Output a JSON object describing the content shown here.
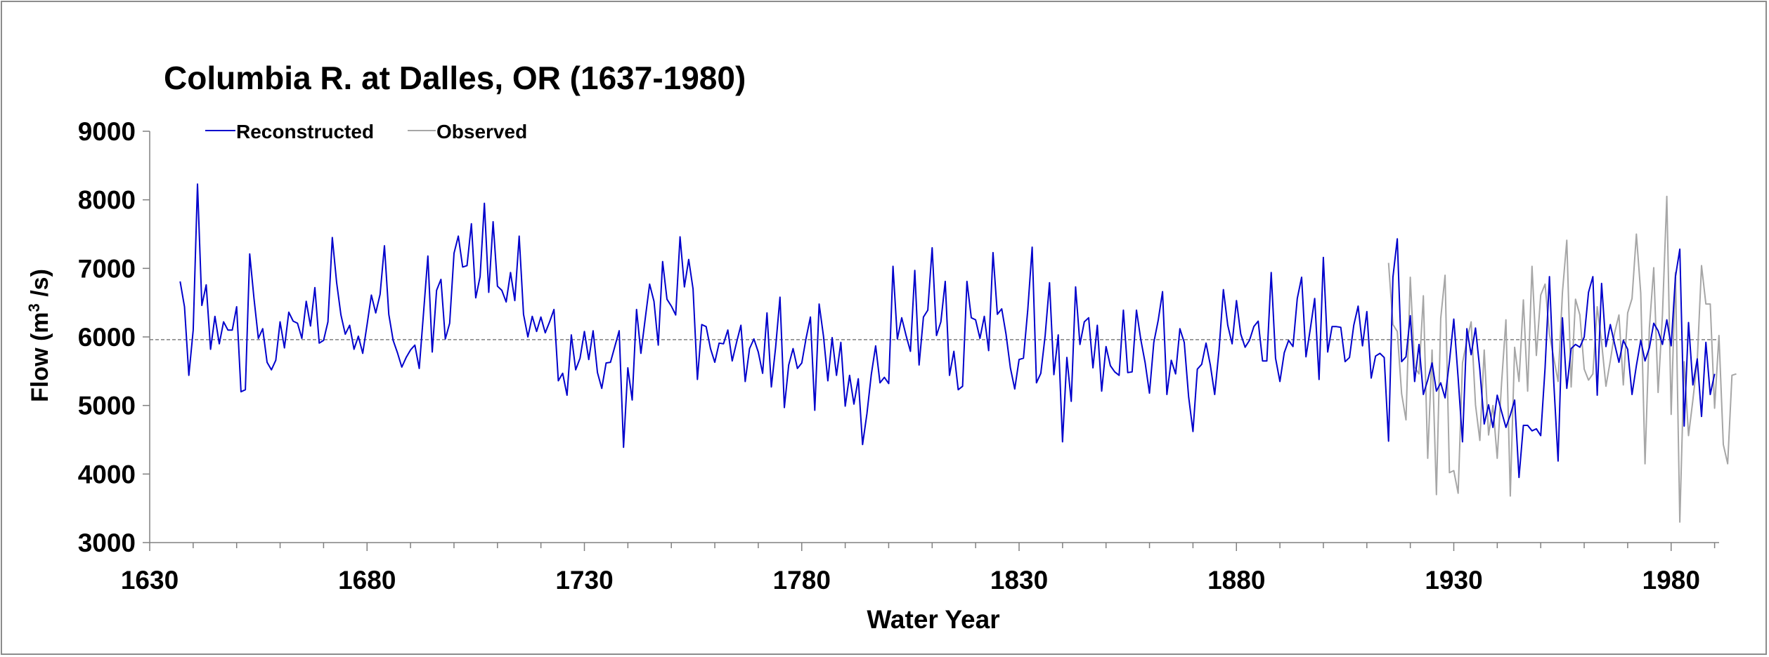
{
  "chart_data": {
    "type": "line",
    "title": "Columbia R. at Dalles, OR (1637-1980)",
    "xlabel": "Water Year",
    "ylabel_main": "Flow (m",
    "ylabel_sup": "3",
    "ylabel_tail": " /s)",
    "xlim": [
      1630,
      1990
    ],
    "ylim": [
      3000,
      9000
    ],
    "x_ticks": [
      1630,
      1680,
      1730,
      1780,
      1830,
      1880,
      1930,
      1980
    ],
    "y_ticks": [
      3000,
      4000,
      5000,
      6000,
      7000,
      8000,
      9000
    ],
    "mean_line": 5960,
    "legend_position": "top-left",
    "series": [
      {
        "name": "Reconstructed",
        "color": "#0000cc",
        "start_year": 1637,
        "values": [
          6810,
          6440,
          5440,
          6100,
          8230,
          6460,
          6760,
          5820,
          6300,
          5900,
          6220,
          6100,
          6100,
          6440,
          5200,
          5230,
          7210,
          6560,
          5980,
          6120,
          5630,
          5520,
          5660,
          6220,
          5840,
          6360,
          6230,
          6200,
          5980,
          6520,
          6160,
          6720,
          5910,
          5950,
          6220,
          7450,
          6790,
          6320,
          6040,
          6170,
          5820,
          6010,
          5760,
          6180,
          6610,
          6350,
          6620,
          7330,
          6330,
          5950,
          5770,
          5560,
          5700,
          5810,
          5880,
          5540,
          6360,
          7180,
          5780,
          6680,
          6840,
          5970,
          6200,
          7220,
          7470,
          7020,
          7040,
          7650,
          6570,
          6880,
          7950,
          6650,
          7680,
          6740,
          6680,
          6510,
          6940,
          6530,
          7470,
          6330,
          6000,
          6300,
          6080,
          6290,
          6060,
          6220,
          6400,
          5360,
          5470,
          5150,
          6030,
          5520,
          5690,
          6080,
          5670,
          6090,
          5480,
          5250,
          5620,
          5630,
          5860,
          6090,
          4390,
          5550,
          5080,
          6400,
          5760,
          6270,
          6770,
          6520,
          5880,
          7100,
          6550,
          6450,
          6320,
          7460,
          6730,
          7130,
          6700,
          5380,
          6180,
          6150,
          5830,
          5630,
          5910,
          5900,
          6100,
          5650,
          5920,
          6170,
          5350,
          5830,
          5970,
          5780,
          5470,
          6350,
          5270,
          5850,
          6580,
          4970,
          5590,
          5830,
          5540,
          5620,
          5980,
          6290,
          4930,
          6480,
          6010,
          5360,
          5990,
          5440,
          5920,
          4990,
          5440,
          5020,
          5390,
          4430,
          4880,
          5450,
          5870,
          5330,
          5410,
          5320,
          7030,
          5970,
          6280,
          6020,
          5790,
          6970,
          5590,
          6290,
          6390,
          7300,
          6020,
          6220,
          6810,
          5440,
          5790,
          5230,
          5280,
          6810,
          6280,
          6250,
          5980,
          6300,
          5800,
          7230,
          6330,
          6410,
          6040,
          5550,
          5240,
          5670,
          5690,
          6400,
          7310,
          5330,
          5470,
          6020,
          6790,
          5450,
          6030,
          4470,
          5700,
          5060,
          6730,
          5890,
          6220,
          6280,
          5550,
          6170,
          5210,
          5860,
          5580,
          5490,
          5440,
          6390,
          5480,
          5490,
          6390,
          5960,
          5620,
          5180,
          5920,
          6240,
          6660,
          5160,
          5660,
          5460,
          6120,
          5920,
          5130,
          4620,
          5530,
          5600,
          5910,
          5590,
          5160,
          5810,
          6690,
          6170,
          5900,
          6530,
          6040,
          5850,
          5950,
          6150,
          6230,
          5650,
          5650,
          6940,
          5690,
          5350,
          5770,
          5950,
          5860,
          6560,
          6870,
          5710,
          6120,
          6560,
          5380,
          7160,
          5780,
          6150,
          6150,
          6140,
          5640,
          5700,
          6170,
          6450,
          5870,
          6370,
          5400,
          5720,
          5760,
          5700,
          4480,
          6870,
          7430,
          5640,
          5710,
          6310,
          5350,
          5890,
          5160,
          5370,
          5620,
          5210,
          5330,
          5110,
          5640,
          6260,
          5400,
          4470,
          6120,
          5740,
          6130,
          5520,
          4730,
          5010,
          4680,
          5150,
          4910,
          4680,
          4860,
          5080,
          3950,
          4710,
          4710,
          4630,
          4660,
          4560,
          5550,
          6880,
          5330,
          4190,
          6280,
          5250,
          5830,
          5890,
          5850,
          6000,
          6650,
          6880,
          5150,
          6780,
          5860,
          6180,
          5900,
          5630,
          5950,
          5820,
          5160,
          5580,
          5950,
          5650,
          5840,
          6200,
          6090,
          5890,
          6250,
          5870,
          6880,
          7280,
          4700,
          6210,
          5300,
          5680,
          4840,
          5920,
          5160,
          5460
        ]
      },
      {
        "name": "Observed",
        "color": "#a6a6a6",
        "start_year": 1915,
        "values": [
          7080,
          6180,
          6080,
          5170,
          4790,
          6870,
          5560,
          5460,
          6600,
          4230,
          5810,
          3700,
          6270,
          6900,
          4020,
          4050,
          3720,
          5620,
          5950,
          6220,
          5010,
          4490,
          5810,
          4570,
          5000,
          4230,
          5330,
          6250,
          3680,
          5850,
          5350,
          6540,
          5210,
          7030,
          5730,
          6610,
          6770,
          6040,
          5690,
          5350,
          6650,
          7410,
          5270,
          6550,
          6320,
          5530,
          5370,
          5460,
          6440,
          5920,
          5280,
          5650,
          6060,
          6320,
          5300,
          6350,
          6560,
          7500,
          6640,
          4150,
          6130,
          7010,
          5190,
          6320,
          8050,
          4870,
          6940,
          3300,
          5640,
          4560,
          5080,
          5650,
          7040,
          6480,
          6480,
          4960,
          6020,
          4430,
          4150,
          5440,
          5460
        ]
      }
    ]
  }
}
